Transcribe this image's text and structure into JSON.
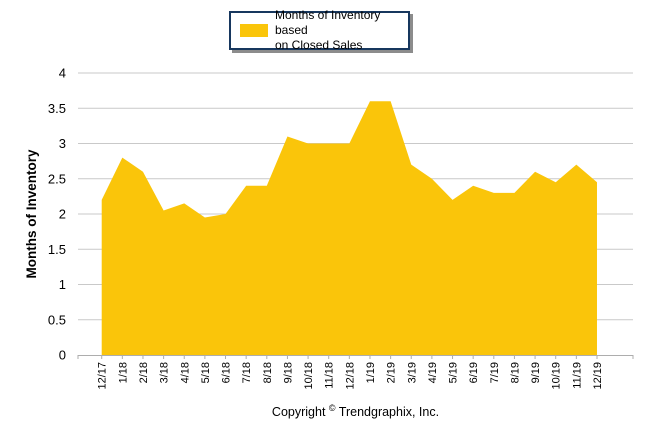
{
  "legend": {
    "label_line1": "Months of Inventory based",
    "label_line2": "on Closed Sales",
    "border_color": "#17375E",
    "shadow_color": "#8C8C8C"
  },
  "y_axis": {
    "title": "Months of Inventory",
    "tick_labels": [
      "0",
      "0.5",
      "1",
      "1.5",
      "2",
      "2.5",
      "3",
      "3.5",
      "4"
    ]
  },
  "footer": {
    "copyright_prefix": "Copyright",
    "copyright_symbol": "©",
    "copyright_suffix": "Trendgraphix, Inc."
  },
  "chart_data": {
    "type": "area",
    "categories": [
      "12/17",
      "1/18",
      "2/18",
      "3/18",
      "4/18",
      "5/18",
      "6/18",
      "7/18",
      "8/18",
      "9/18",
      "10/18",
      "11/18",
      "12/18",
      "1/19",
      "2/19",
      "3/19",
      "4/19",
      "5/19",
      "6/19",
      "7/19",
      "8/19",
      "9/19",
      "10/19",
      "11/19",
      "12/19"
    ],
    "series": [
      {
        "name": "Months of Inventory based on Closed Sales",
        "values": [
          2.2,
          2.8,
          2.6,
          2.05,
          2.15,
          1.95,
          2.0,
          2.4,
          2.4,
          3.1,
          3.0,
          3.0,
          3.0,
          3.6,
          3.6,
          2.7,
          2.5,
          2.2,
          2.4,
          2.3,
          2.3,
          2.6,
          2.45,
          2.7,
          2.45
        ]
      }
    ],
    "title": "",
    "xlabel": "",
    "ylabel": "Months of Inventory",
    "ylim": [
      0,
      4
    ],
    "ytick_step": 0.5,
    "grid": true,
    "x_tick_rotation": -90,
    "legend_position": "top-center",
    "fill_color": "#FAC50A",
    "gridline_color": "#C9C9C9",
    "axis_color": "#ADADAD",
    "text_color": "#000000"
  }
}
